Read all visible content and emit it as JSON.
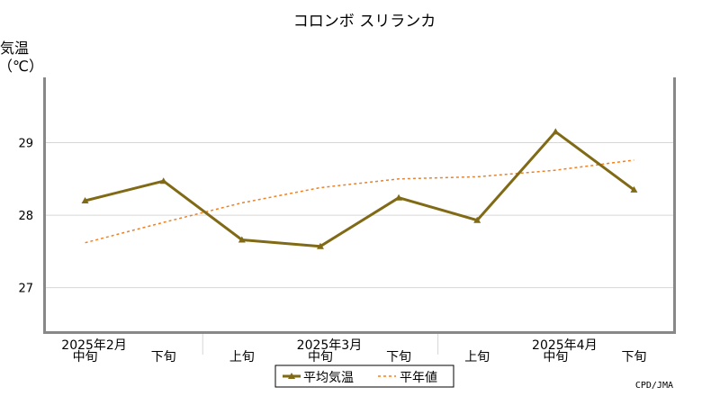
{
  "chart_data": {
    "type": "line",
    "title": "コロンボ スリランカ",
    "ylabel_line1": "気温",
    "ylabel_line2": "（℃）",
    "ylim": [
      26.4,
      29.9
    ],
    "yticks": [
      "27",
      "28",
      "29"
    ],
    "ytick_values": [
      27,
      28,
      29
    ],
    "x": [
      "2025年2月 中旬",
      "2025年2月 下旬",
      "2025年3月 上旬",
      "2025年3月 中旬",
      "2025年3月 下旬",
      "2025年4月 上旬",
      "2025年4月 中旬",
      "2025年4月 下旬"
    ],
    "xtick_labels": [
      "中旬",
      "下旬",
      "上旬",
      "中旬",
      "下旬",
      "上旬",
      "中旬",
      "下旬"
    ],
    "month_labels": [
      {
        "label": "2025年2月",
        "index": 0
      },
      {
        "label": "2025年3月",
        "index": 3
      },
      {
        "label": "2025年4月",
        "index": 6
      }
    ],
    "series": [
      {
        "name": "平均気温",
        "color": "#806a16",
        "style": "solid-triangle",
        "values": [
          28.2,
          28.47,
          27.66,
          27.57,
          28.24,
          27.93,
          29.15,
          28.35
        ]
      },
      {
        "name": "平年値",
        "color": "#f08020",
        "style": "dashed",
        "values": [
          27.62,
          27.9,
          28.17,
          28.38,
          28.5,
          28.53,
          28.62,
          28.76
        ]
      }
    ],
    "legend": {
      "position": "bottom-center",
      "items": [
        "平均気温",
        "平年値"
      ]
    },
    "grid": true
  },
  "credit": "CPD/JMA"
}
